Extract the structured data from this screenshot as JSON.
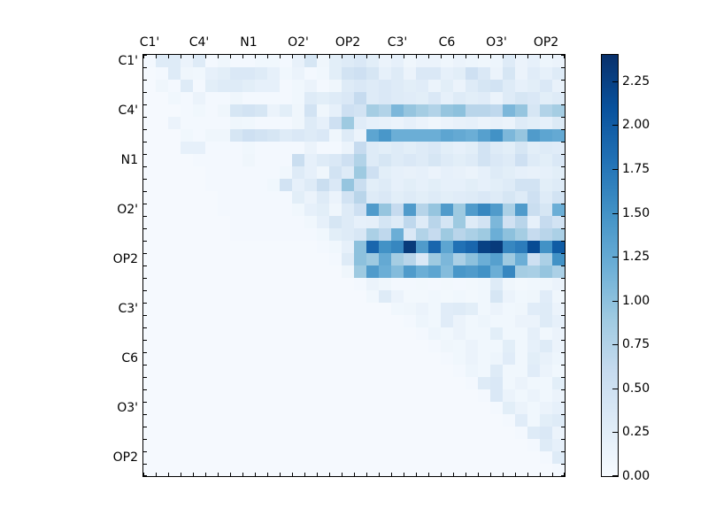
{
  "chart_data": {
    "type": "heatmap",
    "title": "",
    "colormap": "Blues",
    "n": 34,
    "x_axis_position": "top",
    "axis_labels": [
      "C1'",
      "C4'",
      "N1",
      "O2'",
      "OP2",
      "C3'",
      "C6",
      "O3'",
      "OP2"
    ],
    "label_cell_positions": [
      0,
      4,
      8,
      12,
      16,
      20,
      24,
      28,
      32
    ],
    "vmin": 0.0,
    "vmax": 2.4,
    "colorbar_tick_labels": [
      "0.00",
      "0.25",
      "0.50",
      "0.75",
      "1.00",
      "1.25",
      "1.50",
      "1.75",
      "2.00",
      "2.25"
    ],
    "colorbar_tick_values": [
      0.0,
      0.25,
      0.5,
      0.75,
      1.0,
      1.25,
      1.5,
      1.75,
      2.0,
      2.25
    ],
    "colormap_anchors_rgb": [
      [
        247,
        251,
        255
      ],
      [
        222,
        235,
        247
      ],
      [
        198,
        219,
        239
      ],
      [
        158,
        202,
        225
      ],
      [
        107,
        174,
        214
      ],
      [
        66,
        146,
        198
      ],
      [
        33,
        113,
        181
      ],
      [
        8,
        81,
        156
      ],
      [
        8,
        48,
        107
      ]
    ],
    "matrix": [
      [
        0.05,
        0.3,
        0.3,
        0.15,
        0.3,
        0.05,
        0.1,
        0.05,
        0.05,
        0.08,
        0.08,
        0.05,
        0.18,
        0.4,
        0.1,
        0.25,
        0.3,
        0.35,
        0.25,
        0.15,
        0.2,
        0.1,
        0.15,
        0.15,
        0.1,
        0.15,
        0.12,
        0.1,
        0.12,
        0.3,
        0.15,
        0.2,
        0.12,
        0.15
      ],
      [
        0.03,
        0.05,
        0.3,
        0.1,
        0.08,
        0.2,
        0.25,
        0.35,
        0.35,
        0.3,
        0.2,
        0.08,
        0.15,
        0.05,
        0.08,
        0.25,
        0.45,
        0.5,
        0.4,
        0.2,
        0.3,
        0.15,
        0.35,
        0.35,
        0.2,
        0.25,
        0.5,
        0.35,
        0.15,
        0.4,
        0.15,
        0.28,
        0.2,
        0.3
      ],
      [
        0.03,
        0.1,
        0.05,
        0.3,
        0.05,
        0.25,
        0.3,
        0.3,
        0.25,
        0.2,
        0.2,
        0.05,
        0.08,
        0.15,
        0.05,
        0.1,
        0.3,
        0.35,
        0.3,
        0.35,
        0.3,
        0.25,
        0.28,
        0.15,
        0.25,
        0.15,
        0.3,
        0.4,
        0.45,
        0.3,
        0.2,
        0.25,
        0.35,
        0.18
      ],
      [
        0.03,
        0.03,
        0.08,
        0.05,
        0.15,
        0.05,
        0.05,
        0.1,
        0.05,
        0.05,
        0.05,
        0.05,
        0.08,
        0.3,
        0.25,
        0.3,
        0.35,
        0.6,
        0.3,
        0.35,
        0.3,
        0.28,
        0.25,
        0.35,
        0.2,
        0.3,
        0.25,
        0.28,
        0.15,
        0.3,
        0.4,
        0.35,
        0.25,
        0.3
      ],
      [
        0.03,
        0.03,
        0.03,
        0.05,
        0.08,
        0.05,
        0.1,
        0.4,
        0.45,
        0.4,
        0.15,
        0.25,
        0.1,
        0.45,
        0.1,
        0.2,
        0.5,
        0.45,
        0.85,
        0.75,
        1.1,
        0.95,
        0.85,
        0.75,
        0.95,
        1.0,
        0.7,
        0.7,
        0.65,
        1.1,
        0.95,
        0.4,
        0.75,
        0.85
      ],
      [
        0.03,
        0.03,
        0.15,
        0.05,
        0.05,
        0.05,
        0.05,
        0.1,
        0.08,
        0.05,
        0.05,
        0.05,
        0.1,
        0.3,
        0.2,
        0.5,
        0.9,
        0.28,
        0.2,
        0.18,
        0.15,
        0.2,
        0.15,
        0.1,
        0.15,
        0.18,
        0.2,
        0.15,
        0.18,
        0.15,
        0.3,
        0.25,
        0.2,
        0.32
      ],
      [
        0.03,
        0.03,
        0.03,
        0.08,
        0.05,
        0.1,
        0.1,
        0.4,
        0.5,
        0.45,
        0.4,
        0.3,
        0.35,
        0.3,
        0.35,
        0.1,
        0.3,
        0.15,
        1.3,
        1.45,
        1.2,
        1.2,
        1.2,
        1.2,
        1.3,
        1.25,
        1.2,
        1.35,
        1.5,
        1.1,
        0.95,
        1.4,
        1.3,
        1.25
      ],
      [
        0.03,
        0.03,
        0.03,
        0.2,
        0.2,
        0.05,
        0.05,
        0.05,
        0.08,
        0.05,
        0.05,
        0.05,
        0.05,
        0.15,
        0.05,
        0.05,
        0.15,
        0.6,
        0.3,
        0.25,
        0.3,
        0.25,
        0.3,
        0.35,
        0.25,
        0.2,
        0.25,
        0.45,
        0.3,
        0.25,
        0.4,
        0.25,
        0.3,
        0.28
      ],
      [
        0.03,
        0.03,
        0.03,
        0.03,
        0.05,
        0.05,
        0.05,
        0.05,
        0.1,
        0.05,
        0.05,
        0.05,
        0.55,
        0.2,
        0.3,
        0.35,
        0.5,
        0.75,
        0.3,
        0.4,
        0.3,
        0.35,
        0.3,
        0.4,
        0.3,
        0.25,
        0.3,
        0.45,
        0.35,
        0.3,
        0.5,
        0.3,
        0.25,
        0.35
      ],
      [
        0.03,
        0.03,
        0.03,
        0.03,
        0.03,
        0.05,
        0.05,
        0.05,
        0.05,
        0.05,
        0.05,
        0.08,
        0.3,
        0.2,
        0.1,
        0.45,
        0.3,
        0.9,
        0.5,
        0.25,
        0.2,
        0.18,
        0.2,
        0.15,
        0.2,
        0.18,
        0.15,
        0.2,
        0.3,
        0.25,
        0.2,
        0.18,
        0.2,
        0.25
      ],
      [
        0.03,
        0.03,
        0.03,
        0.03,
        0.03,
        0.05,
        0.05,
        0.05,
        0.05,
        0.05,
        0.08,
        0.45,
        0.2,
        0.3,
        0.55,
        0.35,
        0.95,
        0.55,
        0.25,
        0.3,
        0.2,
        0.25,
        0.2,
        0.25,
        0.2,
        0.2,
        0.25,
        0.2,
        0.25,
        0.3,
        0.45,
        0.45,
        0.25,
        0.3
      ],
      [
        0.03,
        0.03,
        0.03,
        0.03,
        0.03,
        0.03,
        0.05,
        0.05,
        0.05,
        0.05,
        0.05,
        0.05,
        0.25,
        0.15,
        0.3,
        0.15,
        0.45,
        0.7,
        0.3,
        0.35,
        0.25,
        0.3,
        0.25,
        0.3,
        0.25,
        0.28,
        0.3,
        0.35,
        0.3,
        0.4,
        0.3,
        0.5,
        0.3,
        0.45
      ],
      [
        0.03,
        0.03,
        0.03,
        0.03,
        0.03,
        0.03,
        0.05,
        0.05,
        0.05,
        0.05,
        0.05,
        0.05,
        0.08,
        0.2,
        0.25,
        0.1,
        0.3,
        0.5,
        1.4,
        0.95,
        0.6,
        1.4,
        0.72,
        0.95,
        1.4,
        0.9,
        1.4,
        1.6,
        1.4,
        0.8,
        1.4,
        0.55,
        0.4,
        1.2
      ],
      [
        0.03,
        0.03,
        0.03,
        0.03,
        0.03,
        0.03,
        0.03,
        0.05,
        0.05,
        0.05,
        0.05,
        0.05,
        0.05,
        0.08,
        0.2,
        0.4,
        0.3,
        0.2,
        0.22,
        0.42,
        0.3,
        0.65,
        0.3,
        0.7,
        0.42,
        0.9,
        0.3,
        0.45,
        1.1,
        0.48,
        0.7,
        0.2,
        0.6,
        0.45
      ],
      [
        0.03,
        0.03,
        0.03,
        0.03,
        0.03,
        0.03,
        0.03,
        0.05,
        0.05,
        0.05,
        0.05,
        0.05,
        0.05,
        0.05,
        0.08,
        0.25,
        0.3,
        0.38,
        0.8,
        0.65,
        1.2,
        0.35,
        0.75,
        0.6,
        0.9,
        0.7,
        0.8,
        0.9,
        1.2,
        1.0,
        0.85,
        0.6,
        0.7,
        0.8
      ],
      [
        0.03,
        0.03,
        0.03,
        0.03,
        0.03,
        0.03,
        0.03,
        0.03,
        0.03,
        0.03,
        0.03,
        0.03,
        0.03,
        0.03,
        0.05,
        0.08,
        0.2,
        1.0,
        1.9,
        1.5,
        1.6,
        2.3,
        1.4,
        1.9,
        1.3,
        1.8,
        1.9,
        2.25,
        2.3,
        1.6,
        1.7,
        2.15,
        1.5,
        2.0
      ],
      [
        0.03,
        0.03,
        0.03,
        0.03,
        0.03,
        0.03,
        0.03,
        0.03,
        0.03,
        0.03,
        0.03,
        0.03,
        0.03,
        0.03,
        0.03,
        0.05,
        0.3,
        1.0,
        0.9,
        1.25,
        0.85,
        0.7,
        0.35,
        0.9,
        1.1,
        0.8,
        1.0,
        1.2,
        1.35,
        0.9,
        1.2,
        0.5,
        0.8,
        1.5
      ],
      [
        0.03,
        0.03,
        0.03,
        0.03,
        0.03,
        0.03,
        0.03,
        0.03,
        0.03,
        0.03,
        0.03,
        0.03,
        0.03,
        0.03,
        0.03,
        0.03,
        0.1,
        0.9,
        1.4,
        1.2,
        1.05,
        1.4,
        1.2,
        1.3,
        1.05,
        1.45,
        1.4,
        1.5,
        1.2,
        1.6,
        0.85,
        0.82,
        0.95,
        0.8
      ],
      [
        0.03,
        0.03,
        0.03,
        0.03,
        0.03,
        0.03,
        0.03,
        0.03,
        0.03,
        0.03,
        0.03,
        0.03,
        0.03,
        0.03,
        0.03,
        0.03,
        0.03,
        0.05,
        0.15,
        0.1,
        0.05,
        0.05,
        0.06,
        0.05,
        0.06,
        0.05,
        0.06,
        0.08,
        0.3,
        0.1,
        0.06,
        0.08,
        0.1,
        0.15
      ],
      [
        0.03,
        0.03,
        0.03,
        0.03,
        0.03,
        0.03,
        0.03,
        0.03,
        0.03,
        0.03,
        0.03,
        0.03,
        0.03,
        0.03,
        0.03,
        0.03,
        0.03,
        0.03,
        0.08,
        0.3,
        0.15,
        0.06,
        0.06,
        0.08,
        0.06,
        0.08,
        0.06,
        0.08,
        0.4,
        0.15,
        0.08,
        0.1,
        0.28,
        0.1
      ],
      [
        0.03,
        0.03,
        0.03,
        0.03,
        0.03,
        0.03,
        0.03,
        0.03,
        0.03,
        0.03,
        0.03,
        0.03,
        0.03,
        0.03,
        0.03,
        0.03,
        0.03,
        0.03,
        0.03,
        0.03,
        0.08,
        0.1,
        0.15,
        0.08,
        0.28,
        0.3,
        0.25,
        0.08,
        0.15,
        0.08,
        0.1,
        0.28,
        0.3,
        0.15
      ],
      [
        0.03,
        0.03,
        0.03,
        0.03,
        0.03,
        0.03,
        0.03,
        0.03,
        0.03,
        0.03,
        0.03,
        0.03,
        0.03,
        0.03,
        0.03,
        0.03,
        0.03,
        0.03,
        0.03,
        0.03,
        0.03,
        0.05,
        0.12,
        0.08,
        0.28,
        0.15,
        0.08,
        0.12,
        0.08,
        0.08,
        0.15,
        0.15,
        0.3,
        0.2
      ],
      [
        0.03,
        0.03,
        0.03,
        0.03,
        0.03,
        0.03,
        0.03,
        0.03,
        0.03,
        0.03,
        0.03,
        0.03,
        0.03,
        0.03,
        0.03,
        0.03,
        0.03,
        0.03,
        0.03,
        0.03,
        0.03,
        0.03,
        0.05,
        0.12,
        0.08,
        0.15,
        0.08,
        0.08,
        0.25,
        0.08,
        0.08,
        0.22,
        0.08,
        0.15
      ],
      [
        0.03,
        0.03,
        0.03,
        0.03,
        0.03,
        0.03,
        0.03,
        0.03,
        0.03,
        0.03,
        0.03,
        0.03,
        0.03,
        0.03,
        0.03,
        0.03,
        0.03,
        0.03,
        0.03,
        0.03,
        0.03,
        0.03,
        0.03,
        0.05,
        0.1,
        0.08,
        0.15,
        0.08,
        0.08,
        0.25,
        0.08,
        0.2,
        0.3,
        0.15
      ],
      [
        0.03,
        0.03,
        0.03,
        0.03,
        0.03,
        0.03,
        0.03,
        0.03,
        0.03,
        0.03,
        0.03,
        0.03,
        0.03,
        0.03,
        0.03,
        0.03,
        0.03,
        0.03,
        0.03,
        0.03,
        0.03,
        0.03,
        0.03,
        0.03,
        0.05,
        0.08,
        0.15,
        0.08,
        0.12,
        0.28,
        0.08,
        0.25,
        0.18,
        0.12
      ],
      [
        0.03,
        0.03,
        0.03,
        0.03,
        0.03,
        0.03,
        0.03,
        0.03,
        0.03,
        0.03,
        0.03,
        0.03,
        0.03,
        0.03,
        0.03,
        0.03,
        0.03,
        0.03,
        0.03,
        0.03,
        0.03,
        0.03,
        0.03,
        0.03,
        0.03,
        0.05,
        0.12,
        0.08,
        0.3,
        0.08,
        0.08,
        0.28,
        0.15,
        0.08
      ],
      [
        0.03,
        0.03,
        0.03,
        0.03,
        0.03,
        0.03,
        0.03,
        0.03,
        0.03,
        0.03,
        0.03,
        0.03,
        0.03,
        0.03,
        0.03,
        0.03,
        0.03,
        0.03,
        0.03,
        0.03,
        0.03,
        0.03,
        0.03,
        0.03,
        0.03,
        0.03,
        0.05,
        0.3,
        0.35,
        0.08,
        0.15,
        0.08,
        0.08,
        0.25
      ],
      [
        0.03,
        0.03,
        0.03,
        0.03,
        0.03,
        0.03,
        0.03,
        0.03,
        0.03,
        0.03,
        0.03,
        0.03,
        0.03,
        0.03,
        0.03,
        0.03,
        0.03,
        0.03,
        0.03,
        0.03,
        0.03,
        0.03,
        0.03,
        0.03,
        0.03,
        0.03,
        0.03,
        0.05,
        0.35,
        0.15,
        0.08,
        0.15,
        0.08,
        0.15
      ],
      [
        0.03,
        0.03,
        0.03,
        0.03,
        0.03,
        0.03,
        0.03,
        0.03,
        0.03,
        0.03,
        0.03,
        0.03,
        0.03,
        0.03,
        0.03,
        0.03,
        0.03,
        0.03,
        0.03,
        0.03,
        0.03,
        0.03,
        0.03,
        0.03,
        0.03,
        0.03,
        0.03,
        0.03,
        0.05,
        0.25,
        0.15,
        0.08,
        0.15,
        0.2
      ],
      [
        0.03,
        0.03,
        0.03,
        0.03,
        0.03,
        0.03,
        0.03,
        0.03,
        0.03,
        0.03,
        0.03,
        0.03,
        0.03,
        0.03,
        0.03,
        0.03,
        0.03,
        0.03,
        0.03,
        0.03,
        0.03,
        0.03,
        0.03,
        0.03,
        0.03,
        0.03,
        0.03,
        0.03,
        0.03,
        0.05,
        0.28,
        0.08,
        0.25,
        0.3
      ],
      [
        0.03,
        0.03,
        0.03,
        0.03,
        0.03,
        0.03,
        0.03,
        0.03,
        0.03,
        0.03,
        0.03,
        0.03,
        0.03,
        0.03,
        0.03,
        0.03,
        0.03,
        0.03,
        0.03,
        0.03,
        0.03,
        0.03,
        0.03,
        0.03,
        0.03,
        0.03,
        0.03,
        0.03,
        0.03,
        0.03,
        0.05,
        0.3,
        0.35,
        0.15
      ],
      [
        0.03,
        0.03,
        0.03,
        0.03,
        0.03,
        0.03,
        0.03,
        0.03,
        0.03,
        0.03,
        0.03,
        0.03,
        0.03,
        0.03,
        0.03,
        0.03,
        0.03,
        0.03,
        0.03,
        0.03,
        0.03,
        0.03,
        0.03,
        0.03,
        0.03,
        0.03,
        0.03,
        0.03,
        0.03,
        0.03,
        0.03,
        0.05,
        0.3,
        0.2
      ],
      [
        0.03,
        0.03,
        0.03,
        0.03,
        0.03,
        0.03,
        0.03,
        0.03,
        0.03,
        0.03,
        0.03,
        0.03,
        0.03,
        0.03,
        0.03,
        0.03,
        0.03,
        0.03,
        0.03,
        0.03,
        0.03,
        0.03,
        0.03,
        0.03,
        0.03,
        0.03,
        0.03,
        0.03,
        0.03,
        0.03,
        0.03,
        0.03,
        0.05,
        0.3
      ],
      [
        0.03,
        0.03,
        0.03,
        0.03,
        0.03,
        0.03,
        0.03,
        0.03,
        0.03,
        0.03,
        0.03,
        0.03,
        0.03,
        0.03,
        0.03,
        0.03,
        0.03,
        0.03,
        0.03,
        0.03,
        0.03,
        0.03,
        0.03,
        0.03,
        0.03,
        0.03,
        0.03,
        0.03,
        0.03,
        0.03,
        0.03,
        0.03,
        0.03,
        0.05
      ]
    ]
  }
}
